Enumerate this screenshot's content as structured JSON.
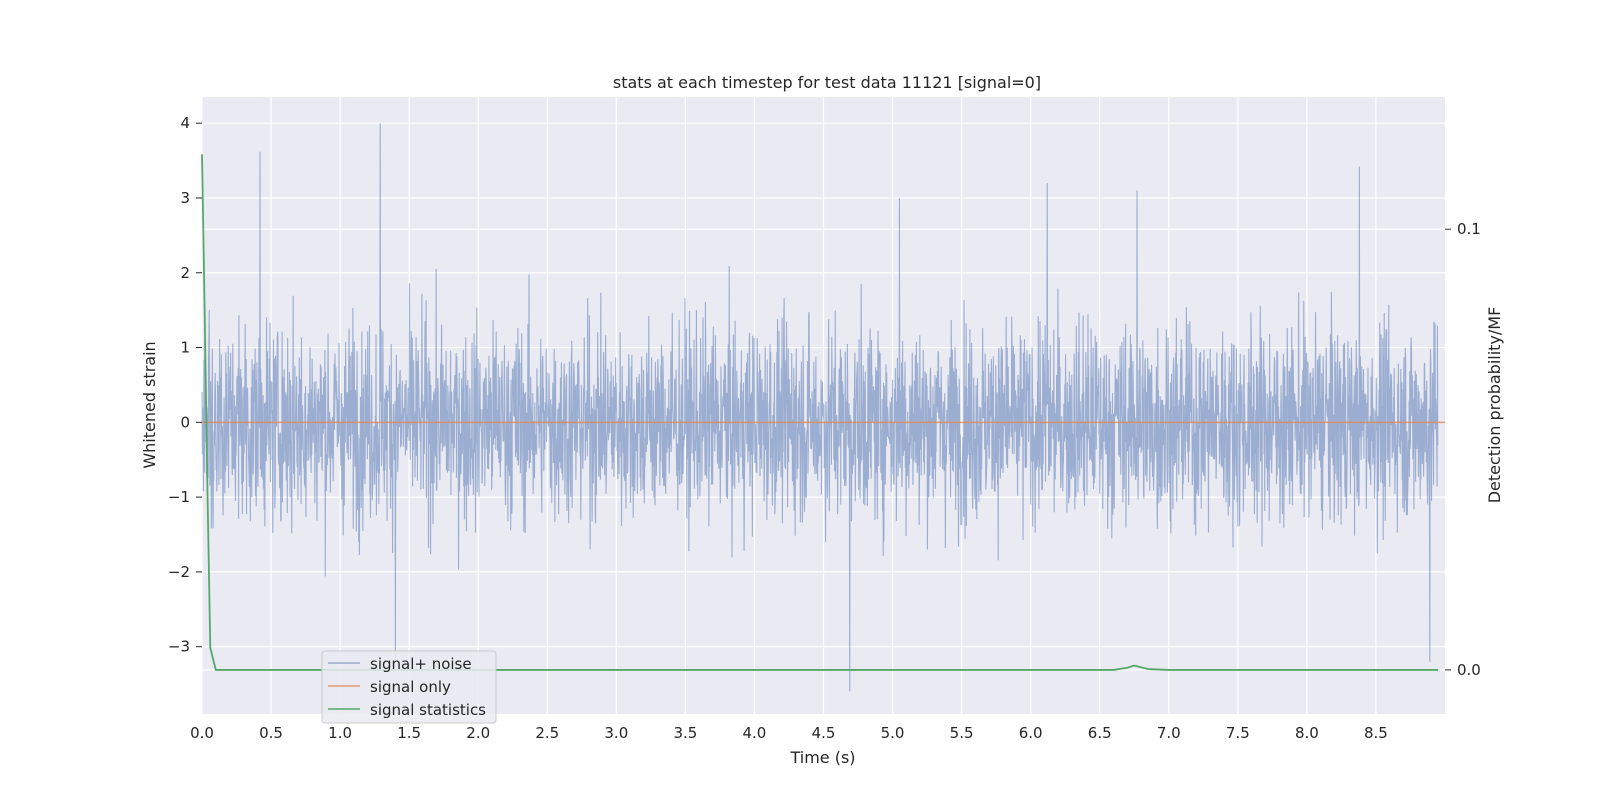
{
  "chart_data": {
    "type": "line",
    "title": "stats at each timestep for test data 11121 [signal=0]",
    "xlabel": "Time (s)",
    "ylabel": "Whitened strain",
    "y2label": "Detection probability/MF",
    "xlim": [
      0,
      9
    ],
    "ylim": [
      -3.9,
      4.35
    ],
    "y2lim": [
      -0.01,
      0.13
    ],
    "x_ticks": [
      "0.0",
      "0.5",
      "1.0",
      "1.5",
      "2.0",
      "2.5",
      "3.0",
      "3.5",
      "4.0",
      "4.5",
      "5.0",
      "5.5",
      "6.0",
      "6.5",
      "7.0",
      "7.5",
      "8.0",
      "8.5"
    ],
    "y_ticks": [
      "4",
      "3",
      "2",
      "1",
      "0",
      "−1",
      "−2",
      "−3"
    ],
    "y2_ticks": [
      "0.1",
      "0.0"
    ],
    "grid": true,
    "legend_position": "lower-left",
    "series": [
      {
        "name": "signal+ noise",
        "color": "#4c72b0",
        "axis": "left",
        "sample_rate_hz": 400,
        "approx_std": 0.65,
        "approx_range": [
          -3.6,
          4.0
        ],
        "notable_peaks": [
          {
            "x": 1.29,
            "y": 4.0
          },
          {
            "x": 0.42,
            "y": 3.62
          },
          {
            "x": 8.38,
            "y": 3.42
          },
          {
            "x": 5.05,
            "y": 3.0
          },
          {
            "x": 6.12,
            "y": 3.2
          },
          {
            "x": 6.77,
            "y": 3.1
          },
          {
            "x": 1.4,
            "y": -3.2
          },
          {
            "x": 4.69,
            "y": -3.6
          },
          {
            "x": 8.89,
            "y": -3.2
          }
        ]
      },
      {
        "name": "signal only",
        "color": "#dd8452",
        "axis": "left",
        "x": [
          0,
          9
        ],
        "y": [
          0,
          0
        ]
      },
      {
        "name": "signal statistics",
        "color": "#55a868",
        "axis": "right",
        "x": [
          0.0,
          0.02,
          0.04,
          0.06,
          0.1,
          0.15,
          0.5,
          2.0,
          4.0,
          6.0,
          6.6,
          6.7,
          6.75,
          6.85,
          7.0,
          8.0,
          8.95
        ],
        "y": [
          0.117,
          0.08,
          0.04,
          0.005,
          0.0,
          0.0,
          0.0,
          0.0,
          0.0,
          0.0,
          0.0,
          0.0005,
          0.001,
          0.0002,
          0.0,
          0.0,
          0.0
        ]
      }
    ]
  }
}
